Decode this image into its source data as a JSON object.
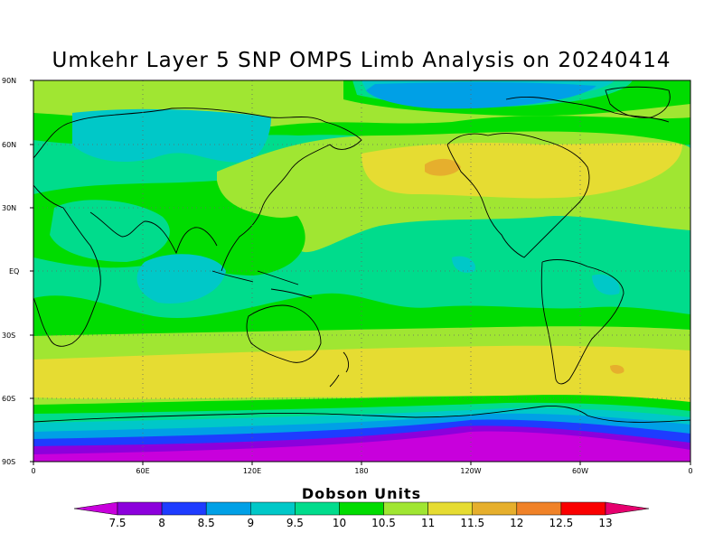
{
  "title": "Umkehr Layer 5 SNP OMPS Limb Analysis on 20240414",
  "lat_labels": [
    "90N",
    "60N",
    "30N",
    "EQ",
    "30S",
    "60S",
    "90S"
  ],
  "lon_labels": [
    "0",
    "60E",
    "120E",
    "180",
    "120W",
    "60W",
    "0"
  ],
  "colorbar": {
    "title": "Dobson Units",
    "labels": [
      "7.5",
      "8",
      "8.5",
      "9",
      "9.5",
      "10",
      "10.5",
      "11",
      "11.5",
      "12",
      "12.5",
      "13"
    ],
    "colors": [
      "#c800dc",
      "#8c00dc",
      "#1e3cff",
      "#00a0e6",
      "#00c8c8",
      "#00dc8c",
      "#00dc00",
      "#a0e632",
      "#e6dc32",
      "#e6af2d",
      "#f08228",
      "#fa0000",
      "#e6006e"
    ]
  },
  "map": {
    "projection": "cylindrical",
    "lon_range": [
      0,
      360
    ],
    "lat_range": [
      -90,
      90
    ],
    "gridlines": "dotted"
  }
}
